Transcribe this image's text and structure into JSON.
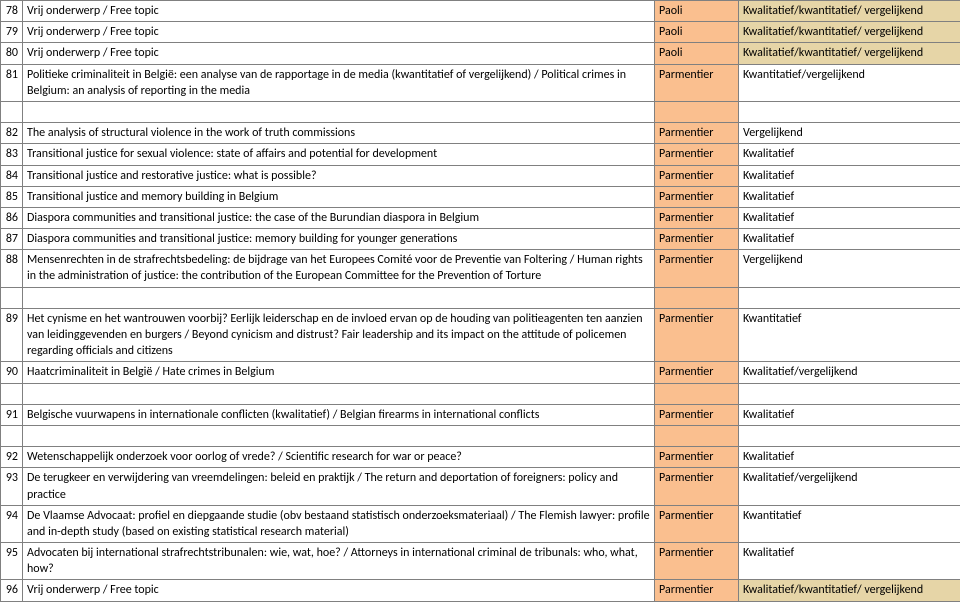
{
  "colors": {
    "orange": "#fabf8f",
    "tan": "#e6d5a7",
    "border": "#808080",
    "background": "#ffffff",
    "text": "#000000"
  },
  "fontsize": 12,
  "rows": [
    {
      "num": "78",
      "topic": "Vrij onderwerp / Free topic",
      "name": "Paoli",
      "type": "Kwalitatief/kwantitatief/ vergelijkend",
      "spacer": false,
      "hlName": "orange",
      "hlType": "tan"
    },
    {
      "num": "79",
      "topic": "Vrij onderwerp / Free topic",
      "name": "Paoli",
      "type": "Kwalitatief/kwantitatief/ vergelijkend",
      "spacer": false,
      "hlName": "orange",
      "hlType": "tan"
    },
    {
      "num": "80",
      "topic": "Vrij onderwerp / Free topic",
      "name": "Paoli",
      "type": "Kwalitatief/kwantitatief/ vergelijkend",
      "spacer": false,
      "hlName": "orange",
      "hlType": "tan"
    },
    {
      "num": "81",
      "topic": "Politieke criminaliteit in België: een analyse van de rapportage in de media (kwantitatief of vergelijkend) / Political crimes in Belgium: an analysis of reporting in the media",
      "name": "Parmentier",
      "type": "Kwantitatief/vergelijkend",
      "spacer": true,
      "hlName": "orange",
      "hlType": ""
    },
    {
      "num": "82",
      "topic": "The analysis of structural violence in the work of truth commissions",
      "name": "Parmentier",
      "type": "Vergelijkend",
      "spacer": false,
      "hlName": "orange",
      "hlType": ""
    },
    {
      "num": "83",
      "topic": "Transitional justice for sexual violence: state of affairs and potential for development",
      "name": "Parmentier",
      "type": "Kwalitatief",
      "spacer": false,
      "hlName": "orange",
      "hlType": ""
    },
    {
      "num": "84",
      "topic": "Transitional justice and restorative justice: what is possible?",
      "name": "Parmentier",
      "type": "Kwalitatief",
      "spacer": false,
      "hlName": "orange",
      "hlType": ""
    },
    {
      "num": "85",
      "topic": "Transitional justice and memory building in Belgium",
      "name": "Parmentier",
      "type": "Kwalitatief",
      "spacer": false,
      "hlName": "orange",
      "hlType": ""
    },
    {
      "num": "86",
      "topic": "Diaspora communities and transitional justice: the case of the Burundian diaspora in Belgium",
      "name": "Parmentier",
      "type": "Kwalitatief",
      "spacer": false,
      "hlName": "orange",
      "hlType": ""
    },
    {
      "num": "87",
      "topic": "Diaspora communities and transitional justice: memory building for younger generations",
      "name": "Parmentier",
      "type": "Kwalitatief",
      "spacer": false,
      "hlName": "orange",
      "hlType": ""
    },
    {
      "num": "88",
      "topic": "Mensenrechten in de strafrechtsbedeling: de bijdrage van het Europees Comité voor de Preventie van Foltering / Human rights in the administration of justice: the contribution of the European Committee for the Prevention of Torture",
      "name": "Parmentier",
      "type": "Vergelijkend",
      "spacer": true,
      "hlName": "orange",
      "hlType": ""
    },
    {
      "num": "89",
      "topic": "Het cynisme en het wantrouwen voorbij? Eerlijk leiderschap en de invloed ervan op de houding van politieagenten ten aanzien van leidinggevenden en burgers / Beyond cynicism and distrust? Fair leadership and its impact on the attitude of policemen regarding officials and citizens",
      "name": "Parmentier",
      "type": "Kwantitatief",
      "spacer": false,
      "hlName": "orange",
      "hlType": ""
    },
    {
      "num": "90",
      "topic": "Haatcriminaliteit in België / Hate crimes in Belgium",
      "name": "Parmentier",
      "type": "Kwalitatief/vergelijkend",
      "spacer": true,
      "hlName": "orange",
      "hlType": ""
    },
    {
      "num": "91",
      "topic": "Belgische vuurwapens in internationale conflicten (kwalitatief) / Belgian firearms in international conflicts",
      "name": "Parmentier",
      "type": "Kwalitatief",
      "spacer": true,
      "hlName": "orange",
      "hlType": ""
    },
    {
      "num": "92",
      "topic": "Wetenschappelijk onderzoek voor oorlog of vrede? / Scientific research for war or peace?",
      "name": "Parmentier",
      "type": "Kwalitatief",
      "spacer": false,
      "hlName": "orange",
      "hlType": ""
    },
    {
      "num": "93",
      "topic": "De terugkeer en verwijdering van vreemdelingen: beleid en praktijk  / The return and deportation of foreigners: policy and practice",
      "name": "Parmentier",
      "type": "Kwalitatief/vergelijkend",
      "spacer": false,
      "hlName": "orange",
      "hlType": ""
    },
    {
      "num": "94",
      "topic": "De Vlaamse Advocaat: profiel en diepgaande studie (obv bestaand statistisch onderzoeksmateriaal) / The Flemish lawyer: profile and in-depth study (based on existing statistical research material)",
      "name": "Parmentier",
      "type": "Kwantitatief",
      "spacer": false,
      "hlName": "orange",
      "hlType": ""
    },
    {
      "num": "95",
      "topic": "Advocaten bij international strafrechtstribunalen: wie, wat, hoe? / Attorneys in international criminal de tribunals: who, what, how?",
      "name": "Parmentier",
      "type": "Kwalitatief",
      "spacer": false,
      "hlName": "orange",
      "hlType": ""
    },
    {
      "num": "96",
      "topic": "Vrij onderwerp / Free topic",
      "name": "Parmentier",
      "type": "Kwalitatief/kwantitatief/ vergelijkend",
      "spacer": false,
      "hlName": "orange",
      "hlType": "tan"
    }
  ]
}
